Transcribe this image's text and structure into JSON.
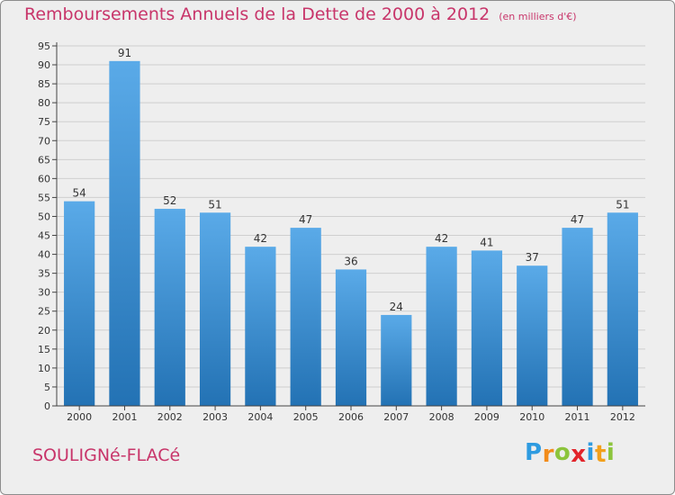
{
  "title": "Remboursements Annuels de la Dette de 2000 à 2012",
  "unit": "(en milliers d'€)",
  "place": "SOULIGNé-FLACé",
  "logo": {
    "letters": [
      "P",
      "r",
      "o",
      "x",
      "i",
      "t",
      "i"
    ],
    "colors": [
      "#2e9be0",
      "#f28c1b",
      "#8cc43c",
      "#e2242a",
      "#2e9be0",
      "#f2a01b",
      "#8cc43c"
    ]
  },
  "colors": {
    "title": "#c8356a",
    "bar_top": "#5aaae8",
    "bar_bottom": "#2372b4",
    "grid": "#cfcfcf",
    "axis": "#444444",
    "label": "#333333"
  },
  "chart_data": {
    "type": "bar",
    "title": "Remboursements Annuels de la Dette de 2000 à 2012",
    "unit": "(en milliers d'€)",
    "categories": [
      "2000",
      "2001",
      "2002",
      "2003",
      "2004",
      "2005",
      "2006",
      "2007",
      "2008",
      "2009",
      "2010",
      "2011",
      "2012"
    ],
    "values": [
      54,
      91,
      52,
      51,
      42,
      47,
      36,
      24,
      42,
      41,
      37,
      47,
      51
    ],
    "ylim": [
      0,
      95
    ],
    "ytick_step": 5,
    "grid": true,
    "legend": "none",
    "data_labels": true
  }
}
